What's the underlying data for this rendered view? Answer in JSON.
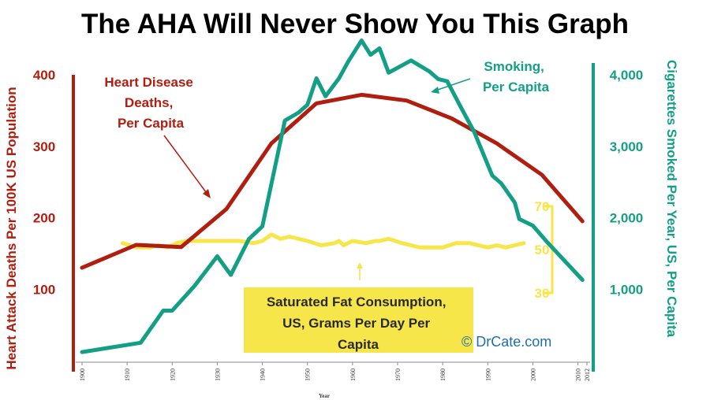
{
  "title": "The AHA Will Never Show You This Graph",
  "credit": "© DrCate.com",
  "chart_data": {
    "type": "line",
    "x_axis": {
      "label": "Year",
      "ticks": [
        1900,
        1910,
        1920,
        1930,
        1940,
        1950,
        1960,
        1970,
        1980,
        1990,
        2000,
        2010,
        2012
      ],
      "range": [
        1900,
        2012
      ]
    },
    "left_axis": {
      "label": "Heart Attack Deaths Per 100K US Population",
      "ticks": [
        "100",
        "200",
        "300",
        "400"
      ],
      "range": [
        0,
        400
      ]
    },
    "right_axis": {
      "label": "Cigarettes Smoked Per Year, US, Per Capita",
      "ticks": [
        "1,000",
        "2,000",
        "3,000",
        "4,000"
      ],
      "range": [
        0,
        4000
      ]
    },
    "fat_axis": {
      "ticks": [
        "70",
        "50",
        "30"
      ],
      "range": [
        30,
        70
      ]
    },
    "colors": {
      "heart": "#b01e10",
      "smoking": "#129f86",
      "fat": "#f6e64a",
      "label_bg": "#f6e64a"
    },
    "series": [
      {
        "key": "heart",
        "name": "Heart Disease Deaths, Per Capita",
        "label_lines": [
          "Heart Disease",
          "Deaths,",
          "Per Capita"
        ],
        "axis": "left",
        "x": [
          1900,
          1912,
          1922,
          1932,
          1942,
          1952,
          1962,
          1972,
          1982,
          1992,
          2002,
          2011
        ],
        "values": [
          130,
          162,
          159,
          212,
          304,
          360,
          372,
          364,
          339,
          304,
          260,
          195
        ]
      },
      {
        "key": "smoking",
        "name": "Smoking, Per Capita",
        "label_lines": [
          "Smoking,",
          "Per Capita"
        ],
        "axis": "right",
        "x": [
          1900,
          1913,
          1918,
          1920,
          1925,
          1930,
          1933,
          1937,
          1940,
          1945,
          1948,
          1950,
          1952,
          1954,
          1957,
          1959,
          1962,
          1964,
          1966,
          1968,
          1973,
          1977,
          1979,
          1981,
          1984,
          1987,
          1991,
          1993,
          1996,
          1997,
          2000,
          2003,
          2011
        ],
        "values": [
          120,
          250,
          700,
          700,
          1050,
          1460,
          1200,
          1700,
          1880,
          3360,
          3470,
          3580,
          3950,
          3700,
          3950,
          4180,
          4480,
          4280,
          4370,
          4030,
          4200,
          4050,
          3940,
          3910,
          3550,
          3200,
          2590,
          2480,
          2210,
          1980,
          1890,
          1670,
          1130
        ]
      },
      {
        "key": "fat",
        "name": "Saturated Fat Consumption, US, Grams Per Day Per Capita",
        "label_lines": [
          "Saturated Fat Consumption,",
          "US, Grams Per Day Per",
          "Capita"
        ],
        "axis": "fat",
        "x": [
          1909,
          1912,
          1915,
          1917,
          1919,
          1921,
          1923,
          1925,
          1930,
          1935,
          1938,
          1940,
          1942,
          1944,
          1946,
          1950,
          1953,
          1956,
          1957,
          1958,
          1960,
          1963,
          1965,
          1966,
          1968,
          1971,
          1975,
          1980,
          1983,
          1986,
          1990,
          1992,
          1994,
          1996,
          1998
        ],
        "values": [
          53,
          51,
          51,
          52,
          51,
          53,
          54,
          54,
          54,
          54,
          53,
          54,
          57,
          55,
          56,
          54,
          52,
          53,
          54,
          52,
          54,
          53,
          54,
          54,
          55,
          53,
          51,
          51,
          53,
          53,
          51,
          52,
          51,
          52,
          53
        ]
      }
    ]
  }
}
